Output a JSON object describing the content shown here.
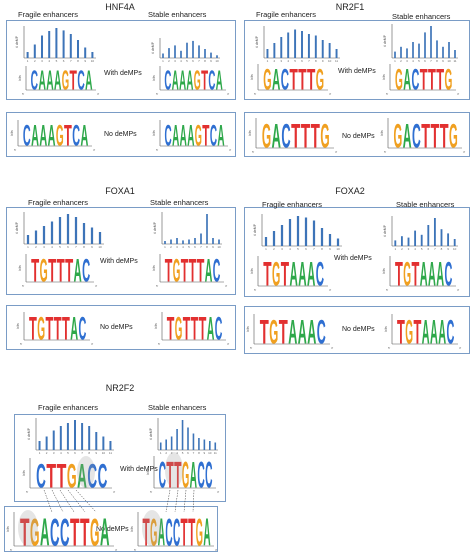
{
  "headers": {
    "fragile": "Fragile enhancers",
    "stable": "Stable enhancers"
  },
  "conditions": {
    "with": "With deMPs",
    "none": "No deMPs"
  },
  "axis": {
    "bits": "bits",
    "count": "# deMP",
    "five": "5'",
    "three": "3'"
  },
  "panels": {
    "hnf4a": {
      "title": "HNF4A",
      "fragile_bars": [
        0.2,
        0.45,
        0.75,
        0.9,
        1.0,
        0.92,
        0.8,
        0.6,
        0.35,
        0.2
      ],
      "stable_bars": [
        0.25,
        0.55,
        0.7,
        0.4,
        0.85,
        0.95,
        0.7,
        0.5,
        0.3,
        0.15
      ],
      "motif_with": [
        "C",
        "A",
        "A",
        "A",
        "G",
        "T",
        "C",
        "A"
      ],
      "motif_none": [
        "C",
        "A",
        "A",
        "A",
        "G",
        "T",
        "C",
        "A"
      ]
    },
    "nr2f1": {
      "title": "NR2F1",
      "fragile_bars": [
        0.3,
        0.5,
        0.7,
        0.85,
        0.95,
        0.9,
        0.8,
        0.75,
        0.6,
        0.5,
        0.3
      ],
      "stable_bars": [
        0.2,
        0.35,
        0.3,
        0.5,
        0.45,
        0.8,
        1.0,
        0.55,
        0.35,
        0.5,
        0.25
      ],
      "motif_with": [
        "G",
        "A",
        "C",
        "T",
        "T",
        "T",
        "G"
      ],
      "motif_none": [
        "G",
        "A",
        "C",
        "T",
        "T",
        "T",
        "G"
      ]
    },
    "foxa1": {
      "title": "FOXA1",
      "fragile_bars": [
        0.3,
        0.45,
        0.6,
        0.75,
        0.9,
        1.0,
        0.9,
        0.7,
        0.55,
        0.4
      ],
      "stable_bars": [
        0.1,
        0.15,
        0.2,
        0.12,
        0.15,
        0.2,
        0.35,
        1.0,
        0.2,
        0.15
      ],
      "motif_with": [
        "T",
        "G",
        "T",
        "T",
        "T",
        "A",
        "C"
      ],
      "motif_none": [
        "T",
        "G",
        "T",
        "T",
        "T",
        "A",
        "C"
      ]
    },
    "foxa2": {
      "title": "FOXA2",
      "fragile_bars": [
        0.3,
        0.5,
        0.7,
        0.9,
        1.0,
        0.95,
        0.85,
        0.6,
        0.4,
        0.25
      ],
      "stable_bars": [
        0.2,
        0.35,
        0.3,
        0.55,
        0.4,
        0.75,
        1.0,
        0.6,
        0.45,
        0.25
      ],
      "motif_with": [
        "T",
        "G",
        "T",
        "A",
        "A",
        "A",
        "C"
      ],
      "motif_none": [
        "T",
        "G",
        "T",
        "A",
        "A",
        "A",
        "C"
      ]
    },
    "nr2f2": {
      "title": "NR2F2",
      "fragile_bars": [
        0.3,
        0.45,
        0.65,
        0.8,
        0.9,
        1.0,
        0.9,
        0.8,
        0.6,
        0.45,
        0.3
      ],
      "stable_bars": [
        0.25,
        0.35,
        0.45,
        0.7,
        1.0,
        0.75,
        0.55,
        0.4,
        0.35,
        0.3,
        0.25
      ],
      "motif_with": [
        "C",
        "T",
        "T",
        "G",
        "A",
        "C",
        "C"
      ],
      "motif_none": [
        "T",
        "G",
        "A",
        "C",
        "C",
        "T",
        "T",
        "G",
        "A"
      ]
    }
  }
}
